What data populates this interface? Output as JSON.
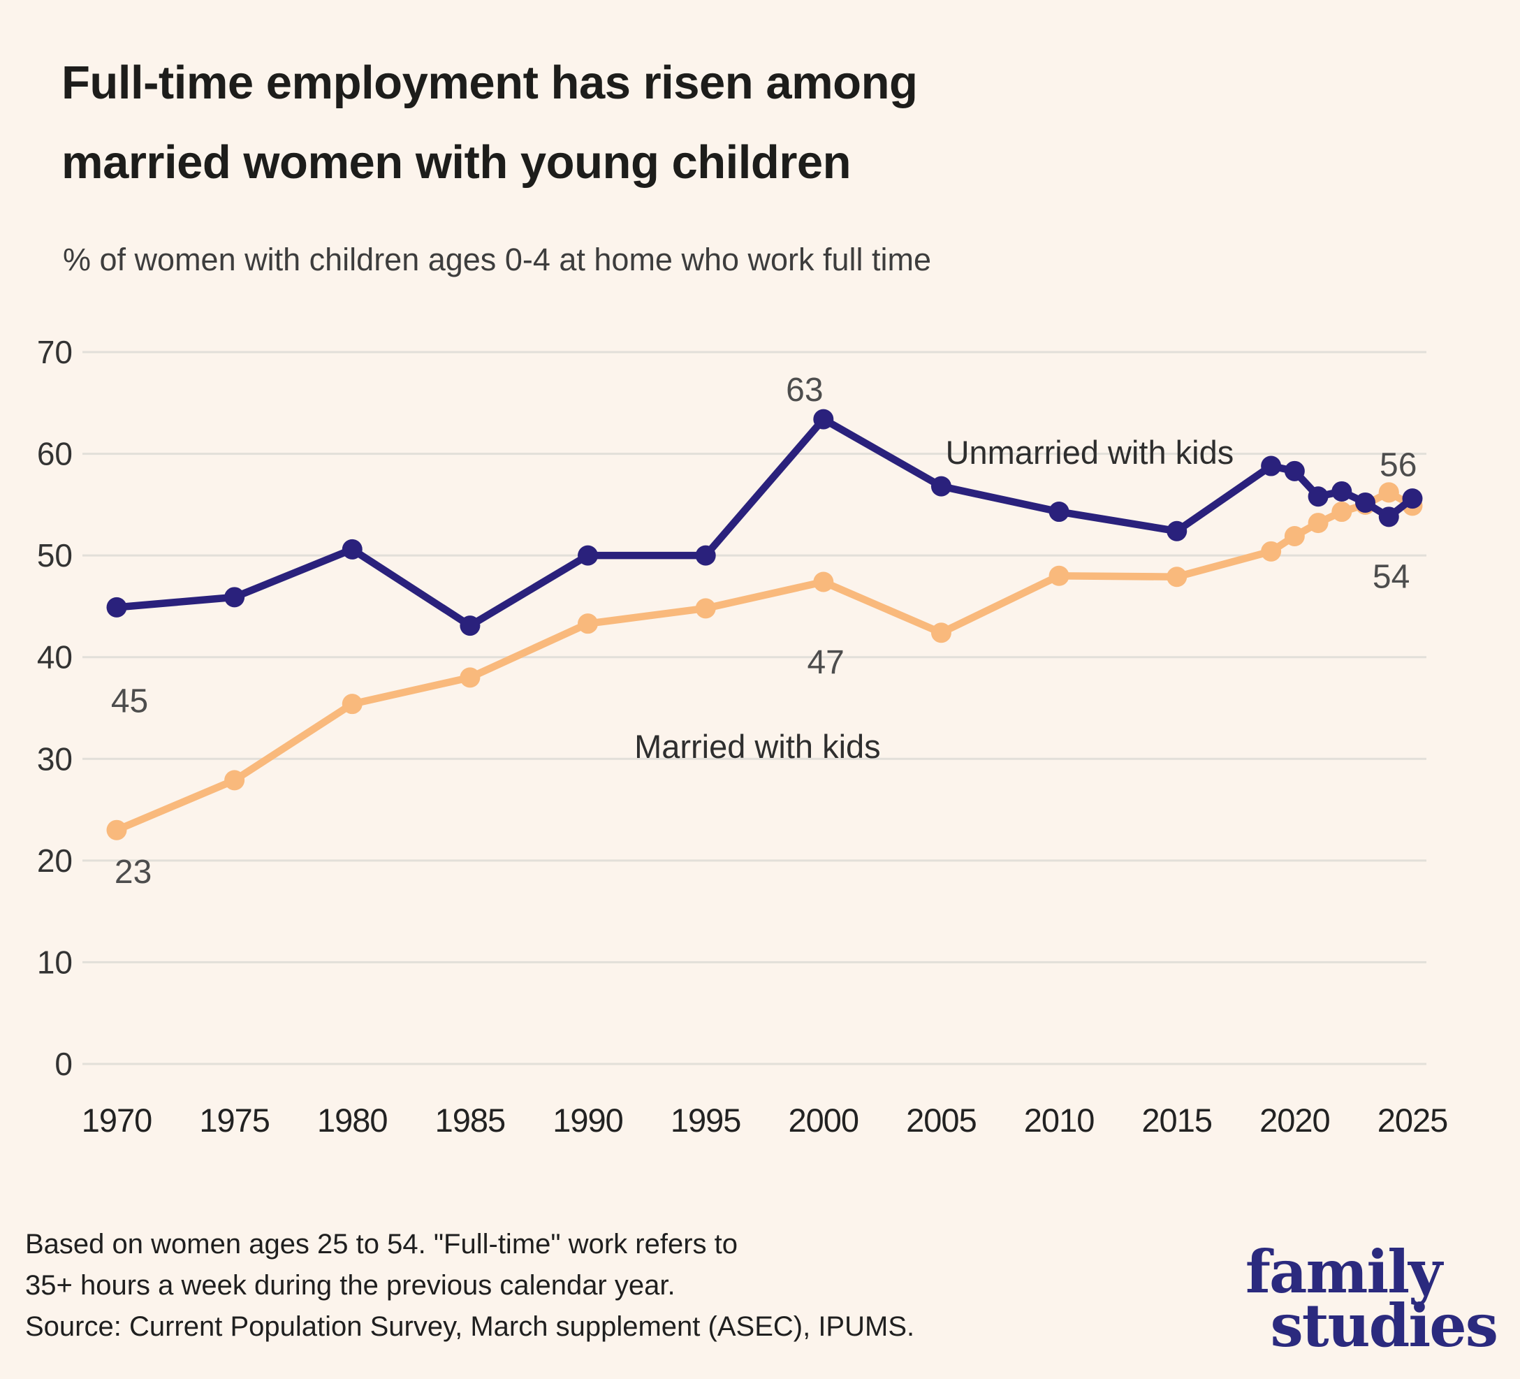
{
  "header": {
    "title_lines": [
      "Full-time employment has risen among",
      "married women with young children"
    ],
    "subtitle": "% of women with children ages 0-4 at home who work full time"
  },
  "chart_data": {
    "type": "line",
    "title": "Full-time employment has risen among married women with young children",
    "subtitle": "% of women with children ages 0-4 at home who work full time",
    "xlabel": "",
    "ylabel": "",
    "ylim": [
      0,
      70
    ],
    "xlim": [
      1968.5,
      2029.5
    ],
    "grid": "horizontal",
    "background_color": "#fcf4ec",
    "gridline_color": "#e2dfd9",
    "x_ticks": [
      {
        "value": 1970,
        "label": "1970"
      },
      {
        "value": 1975,
        "label": "1975"
      },
      {
        "value": 1980,
        "label": "1980"
      },
      {
        "value": 1985,
        "label": "1985"
      },
      {
        "value": 1990,
        "label": "1990"
      },
      {
        "value": 1995,
        "label": "1995"
      },
      {
        "value": 2000,
        "label": "2000"
      },
      {
        "value": 2005,
        "label": "2005"
      },
      {
        "value": 2010,
        "label": "2010"
      },
      {
        "value": 2015,
        "label": "2015"
      },
      {
        "value": 2020,
        "label": "2020"
      },
      {
        "value": 2025,
        "label": "2025"
      }
    ],
    "y_ticks": [
      {
        "value": 70,
        "label": "70"
      },
      {
        "value": 60,
        "label": "60"
      },
      {
        "value": 50,
        "label": "50"
      },
      {
        "value": 40,
        "label": "40"
      },
      {
        "value": 30,
        "label": "30"
      },
      {
        "value": 20,
        "label": "20"
      },
      {
        "value": 10,
        "label": "10"
      },
      {
        "value": 0,
        "label": "0"
      }
    ],
    "series": [
      {
        "name": "Married with kids",
        "color": "#f9b97c",
        "points": [
          [
            1970,
            23
          ],
          [
            1975,
            27.9
          ],
          [
            1980,
            35.4
          ],
          [
            1985,
            38
          ],
          [
            1990,
            43.3
          ],
          [
            1995,
            44.8
          ],
          [
            2000,
            47.4
          ],
          [
            2005,
            42.4
          ],
          [
            2010,
            48
          ],
          [
            2015,
            47.9
          ],
          [
            2019,
            50.4
          ],
          [
            2020,
            51.9
          ],
          [
            2021,
            53.2
          ],
          [
            2022,
            54.3
          ],
          [
            2023,
            55
          ],
          [
            2024,
            56.2
          ],
          [
            2025,
            54.9
          ]
        ]
      },
      {
        "name": "Unmarried with kids",
        "color": "#2a217c",
        "points": [
          [
            1970,
            44.9
          ],
          [
            1975,
            45.9
          ],
          [
            1980,
            50.6
          ],
          [
            1985,
            43.1
          ],
          [
            1990,
            50
          ],
          [
            1995,
            50
          ],
          [
            2000,
            63.4
          ],
          [
            2005,
            56.8
          ],
          [
            2010,
            54.3
          ],
          [
            2015,
            52.4
          ],
          [
            2019,
            58.8
          ],
          [
            2020,
            58.3
          ],
          [
            2021,
            55.8
          ],
          [
            2022,
            56.3
          ],
          [
            2023,
            55.2
          ],
          [
            2024,
            53.8
          ],
          [
            2025,
            55.6
          ]
        ]
      }
    ],
    "overlay_points": [
      {
        "series_index": 0,
        "year": 2024
      }
    ],
    "annotations": [
      {
        "text": "45",
        "x": 1970.55,
        "y": 35.7,
        "kind": "value"
      },
      {
        "text": "23",
        "x": 1970.7,
        "y": 18.9,
        "kind": "value"
      },
      {
        "text": "63",
        "x": 1999.2,
        "y": 66.3,
        "kind": "value"
      },
      {
        "text": "47",
        "x": 2000.1,
        "y": 39.5,
        "kind": "value"
      },
      {
        "text": "56",
        "x": 2024.4,
        "y": 58.9,
        "kind": "value"
      },
      {
        "text": "54",
        "x": 2024.1,
        "y": 47.9,
        "kind": "value"
      },
      {
        "text": "Unmarried with kids",
        "x": 2011.3,
        "y": 60.1,
        "kind": "series"
      },
      {
        "text": "Married with kids",
        "x": 1997.2,
        "y": 31.2,
        "kind": "series"
      }
    ],
    "legend_position": "inline-annotations"
  },
  "footnote": {
    "lines": [
      "Based on women ages 25 to 54. \"Full-time\" work refers to",
      "35+ hours a week  during the previous calendar year.",
      "Source: Current Population Survey, March supplement (ASEC), IPUMS."
    ]
  },
  "logo": {
    "line1": "family",
    "line2": "studies",
    "color": "#2b2a7e"
  }
}
